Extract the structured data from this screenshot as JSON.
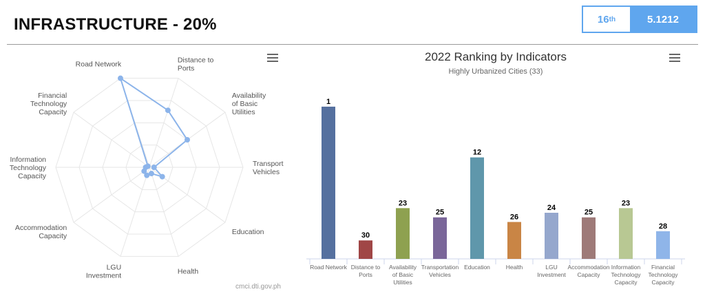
{
  "header": {
    "title": "INFRASTRUCTURE - 20%",
    "rank": "16",
    "rank_suffix": "th",
    "score": "5.1212",
    "accent": "#5fa6ee"
  },
  "radar": {
    "axes": [
      "Road Network",
      "Distance to Ports",
      "Availability of Basic Utilities",
      "Transport Vehicles",
      "Education",
      "Health",
      "LGU Investment",
      "Accommodation Capacity",
      "Information Technology Capacity",
      "Financial Technology Capacity"
    ],
    "values": [
      1.0,
      0.64,
      0.5,
      0.05,
      0.17,
      0.07,
      0.09,
      0.07,
      0.04,
      0.02
    ],
    "color": "#8cb4ea",
    "menu_icon": "hamburger-menu-icon",
    "credit": "cmci.dti.gov.ph"
  },
  "chart_data": {
    "type": "bar",
    "title": "2022 Ranking by Indicators",
    "subtitle": "Highly Urbanized Cities (33)",
    "categories": [
      "Road Network",
      "Distance to Ports",
      "Availability of Basic Utilities",
      "Transportation Vehicles",
      "Education",
      "Health",
      "LGU Investment",
      "Accommodation Capacity",
      "Information Technology Capacity",
      "Financial Technology Capacity"
    ],
    "values": [
      1,
      30,
      23,
      25,
      12,
      26,
      24,
      25,
      23,
      28
    ],
    "colors": [
      "#55709f",
      "#a04646",
      "#8ea150",
      "#7a6699",
      "#5f97ab",
      "#c98545",
      "#95a7cd",
      "#9e7a78",
      "#b8c893",
      "#8fb5e9"
    ],
    "reversed_scale": true,
    "total": 33,
    "grid": false,
    "menu_icon": "hamburger-menu-icon"
  }
}
